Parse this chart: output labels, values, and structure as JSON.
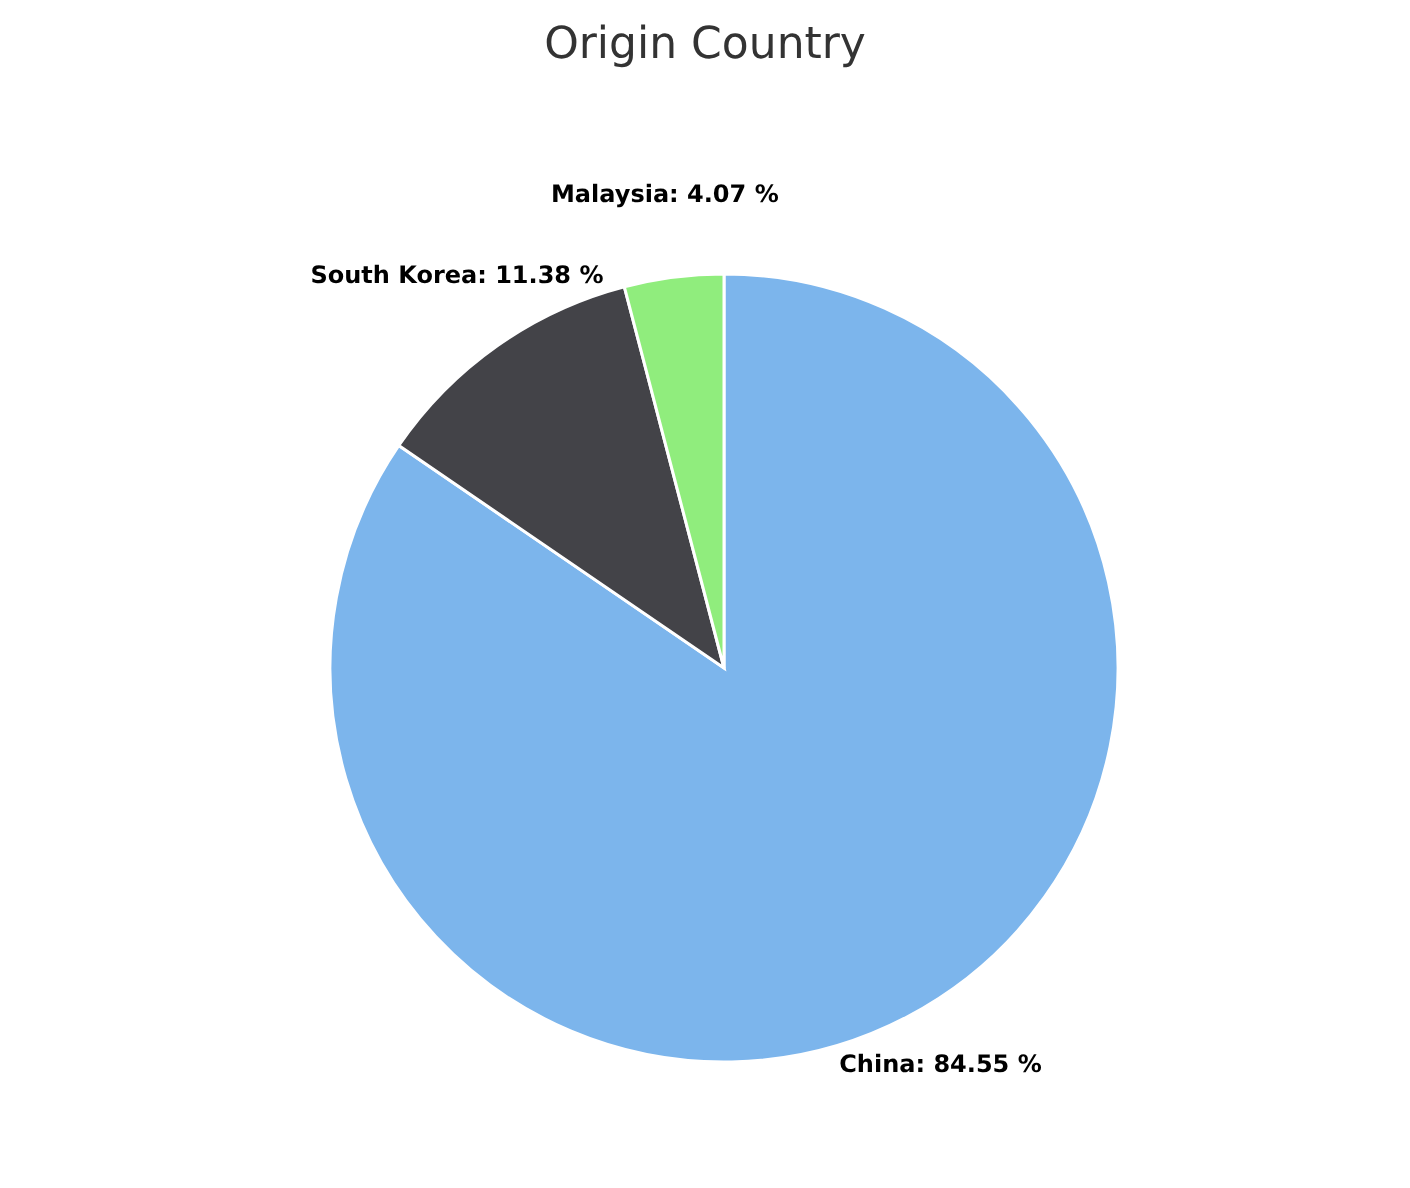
{
  "chart_data": {
    "type": "pie",
    "title": "Origin Country",
    "categories": [
      "China",
      "South Korea",
      "Malaysia"
    ],
    "values": [
      84.55,
      11.38,
      4.07
    ],
    "value_labels": [
      "84.55 %",
      "11.38 %",
      "4.07 %"
    ],
    "colors": [
      "#7cb5ec",
      "#434348",
      "#90ed7d"
    ],
    "legend": false
  }
}
